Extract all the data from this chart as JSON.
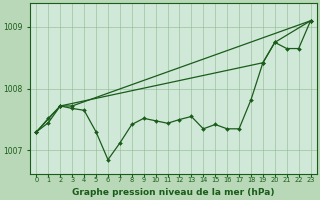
{
  "background_color": "#b8d8b8",
  "plot_bg_color": "#d0e8d8",
  "grid_color": "#90b890",
  "line_color": "#1a5c1a",
  "title": "Graphe pression niveau de la mer (hPa)",
  "title_fontsize": 6.5,
  "ylabel_ticks": [
    1007,
    1008,
    1009
  ],
  "xlim": [
    -0.5,
    23.5
  ],
  "ylim": [
    1006.62,
    1009.38
  ],
  "series1": [
    1007.3,
    1007.45,
    1007.72,
    1007.68,
    1007.65,
    1007.3,
    1006.85,
    1007.12,
    1007.42,
    1007.52,
    1007.48,
    1007.44,
    1007.5,
    1007.55,
    1007.35,
    1007.42,
    1007.35,
    1007.35,
    1007.82,
    1008.42,
    1008.75,
    1008.65,
    1008.65,
    1009.1
  ],
  "series2_x": [
    0,
    1,
    2,
    3,
    23
  ],
  "series2_y": [
    1007.3,
    1007.52,
    1007.72,
    1007.72,
    1009.1
  ],
  "series3_x": [
    0,
    2,
    19,
    20,
    23
  ],
  "series3_y": [
    1007.3,
    1007.72,
    1008.42,
    1008.75,
    1009.1
  ],
  "xtick_labels": [
    "0",
    "1",
    "2",
    "3",
    "4",
    "5",
    "6",
    "7",
    "8",
    "9",
    "10",
    "11",
    "12",
    "13",
    "14",
    "15",
    "16",
    "17",
    "18",
    "19",
    "20",
    "21",
    "22",
    "23"
  ],
  "tick_fontsize": 4.8,
  "ytick_fontsize": 5.5,
  "marker_size": 2.0,
  "linewidth": 0.9
}
